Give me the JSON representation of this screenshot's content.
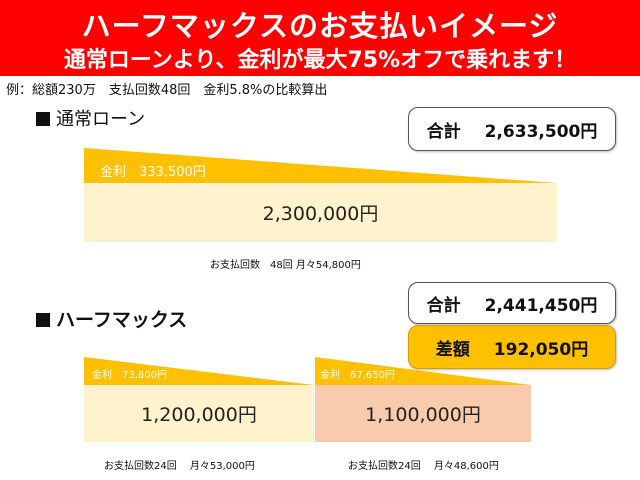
{
  "banner": {
    "title": "ハーフマックスのお支払いイメージ",
    "subtitle": "通常ローンより、金利が最大75%オフで乗れます！"
  },
  "note": "例：総額230万　支払回数48回　金利5.8%の比較算出",
  "regular": {
    "heading": "通常ローン",
    "total_label": "合計",
    "total_value": "2,633,500円",
    "interest_label": "金利　333,500円",
    "principal": "2,300,000円",
    "payment_info": "お支払回数　48回  月々54,800円"
  },
  "halfmax": {
    "heading": "ハーフマックス",
    "total_label": "合計",
    "total_value": "2,441,450円",
    "diff_label": "差額",
    "diff_value": "192,050円",
    "first": {
      "interest_label": "金利　73,800円",
      "principal": "1,200,000円",
      "payment_info": "お支払回数24回　 月々53,000円"
    },
    "second": {
      "interest_label": "金利　67,650円",
      "principal": "1,100,000円",
      "payment_info": "お支払回数24回　 月々48,600円"
    }
  },
  "colors": {
    "banner": "#ff0000",
    "wedge": "#ffc000",
    "cream": "#fff2cc",
    "salmon": "#f8cbad",
    "diff_pill": "#ffc000"
  }
}
